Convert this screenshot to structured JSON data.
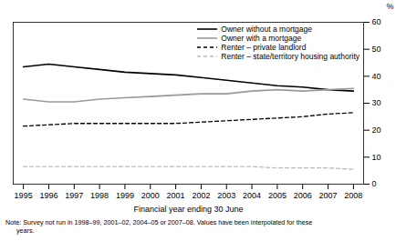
{
  "chart_data": {
    "type": "line",
    "xlabel": "Financial year ending 30 June",
    "ylabel": "%",
    "x": [
      1995,
      1996,
      1997,
      1998,
      1999,
      2000,
      2001,
      2002,
      2003,
      2004,
      2005,
      2006,
      2007,
      2008
    ],
    "xlim": [
      1994.6,
      2008.4
    ],
    "xticks": [
      1995,
      1996,
      1997,
      1998,
      1999,
      2000,
      2001,
      2002,
      2003,
      2004,
      2005,
      2006,
      2007,
      2008
    ],
    "ylim": [
      0,
      60
    ],
    "yticks": [
      0,
      10,
      20,
      30,
      40,
      50,
      60
    ],
    "grid": false,
    "legend": "upper right",
    "series": [
      {
        "name": "Owner without a mortgage",
        "color": "#000000",
        "line_style": "solid",
        "values": [
          43.5,
          44.5,
          43.5,
          42.5,
          41.5,
          41.0,
          40.5,
          39.5,
          38.5,
          37.5,
          36.5,
          36.0,
          35.0,
          34.5
        ]
      },
      {
        "name": "Owner with a mortgage",
        "color": "#999999",
        "line_style": "solid",
        "values": [
          31.5,
          30.5,
          30.5,
          31.5,
          32.0,
          32.5,
          33.0,
          33.5,
          33.5,
          34.5,
          35.0,
          34.5,
          35.0,
          35.5
        ]
      },
      {
        "name": "Renter – private landlord",
        "color": "#000000",
        "line_style": "dashed",
        "values": [
          21.5,
          22.0,
          22.5,
          22.5,
          22.5,
          22.5,
          22.5,
          23.0,
          23.5,
          24.0,
          24.5,
          25.0,
          26.0,
          26.5
        ]
      },
      {
        "name": "Renter – state/territory housing authority",
        "color": "#bbbbbb",
        "line_style": "dashed",
        "values": [
          6.5,
          6.5,
          6.5,
          6.5,
          6.5,
          6.5,
          6.5,
          6.5,
          6.5,
          6.5,
          6.0,
          6.0,
          6.0,
          5.5
        ]
      }
    ],
    "annotations": [
      "Note: Survey not run in 1998–99, 2001–02, 2004–05 or 2007–08. Values have been interpolated for these",
      "      years."
    ]
  }
}
